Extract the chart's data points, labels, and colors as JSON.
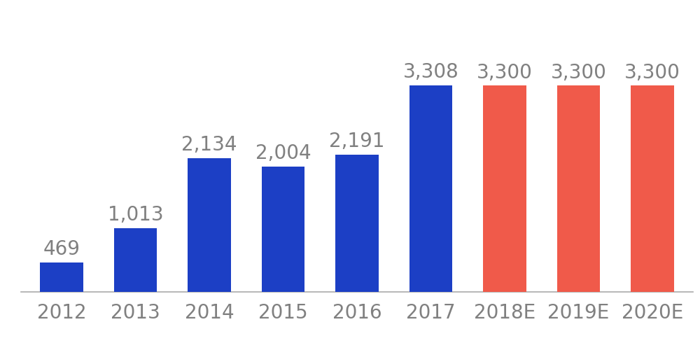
{
  "categories": [
    "2012",
    "2013",
    "2014",
    "2015",
    "2016",
    "2017",
    "2018E",
    "2019E",
    "2020E"
  ],
  "values": [
    469,
    1013,
    2134,
    2004,
    2191,
    3308,
    3300,
    3300,
    3300
  ],
  "bar_colors": [
    "#1c3fc5",
    "#1c3fc5",
    "#1c3fc5",
    "#1c3fc5",
    "#1c3fc5",
    "#1c3fc5",
    "#f05a4a",
    "#f05a4a",
    "#f05a4a"
  ],
  "labels": [
    "469",
    "1,013",
    "2,134",
    "2,004",
    "2,191",
    "3,308",
    "3,300",
    "3,300",
    "3,300"
  ],
  "background_color": "#ffffff",
  "label_color": "#808080",
  "label_fontsize": 20,
  "tick_fontsize": 20,
  "ylim": [
    0,
    4400
  ],
  "bar_width": 0.58
}
